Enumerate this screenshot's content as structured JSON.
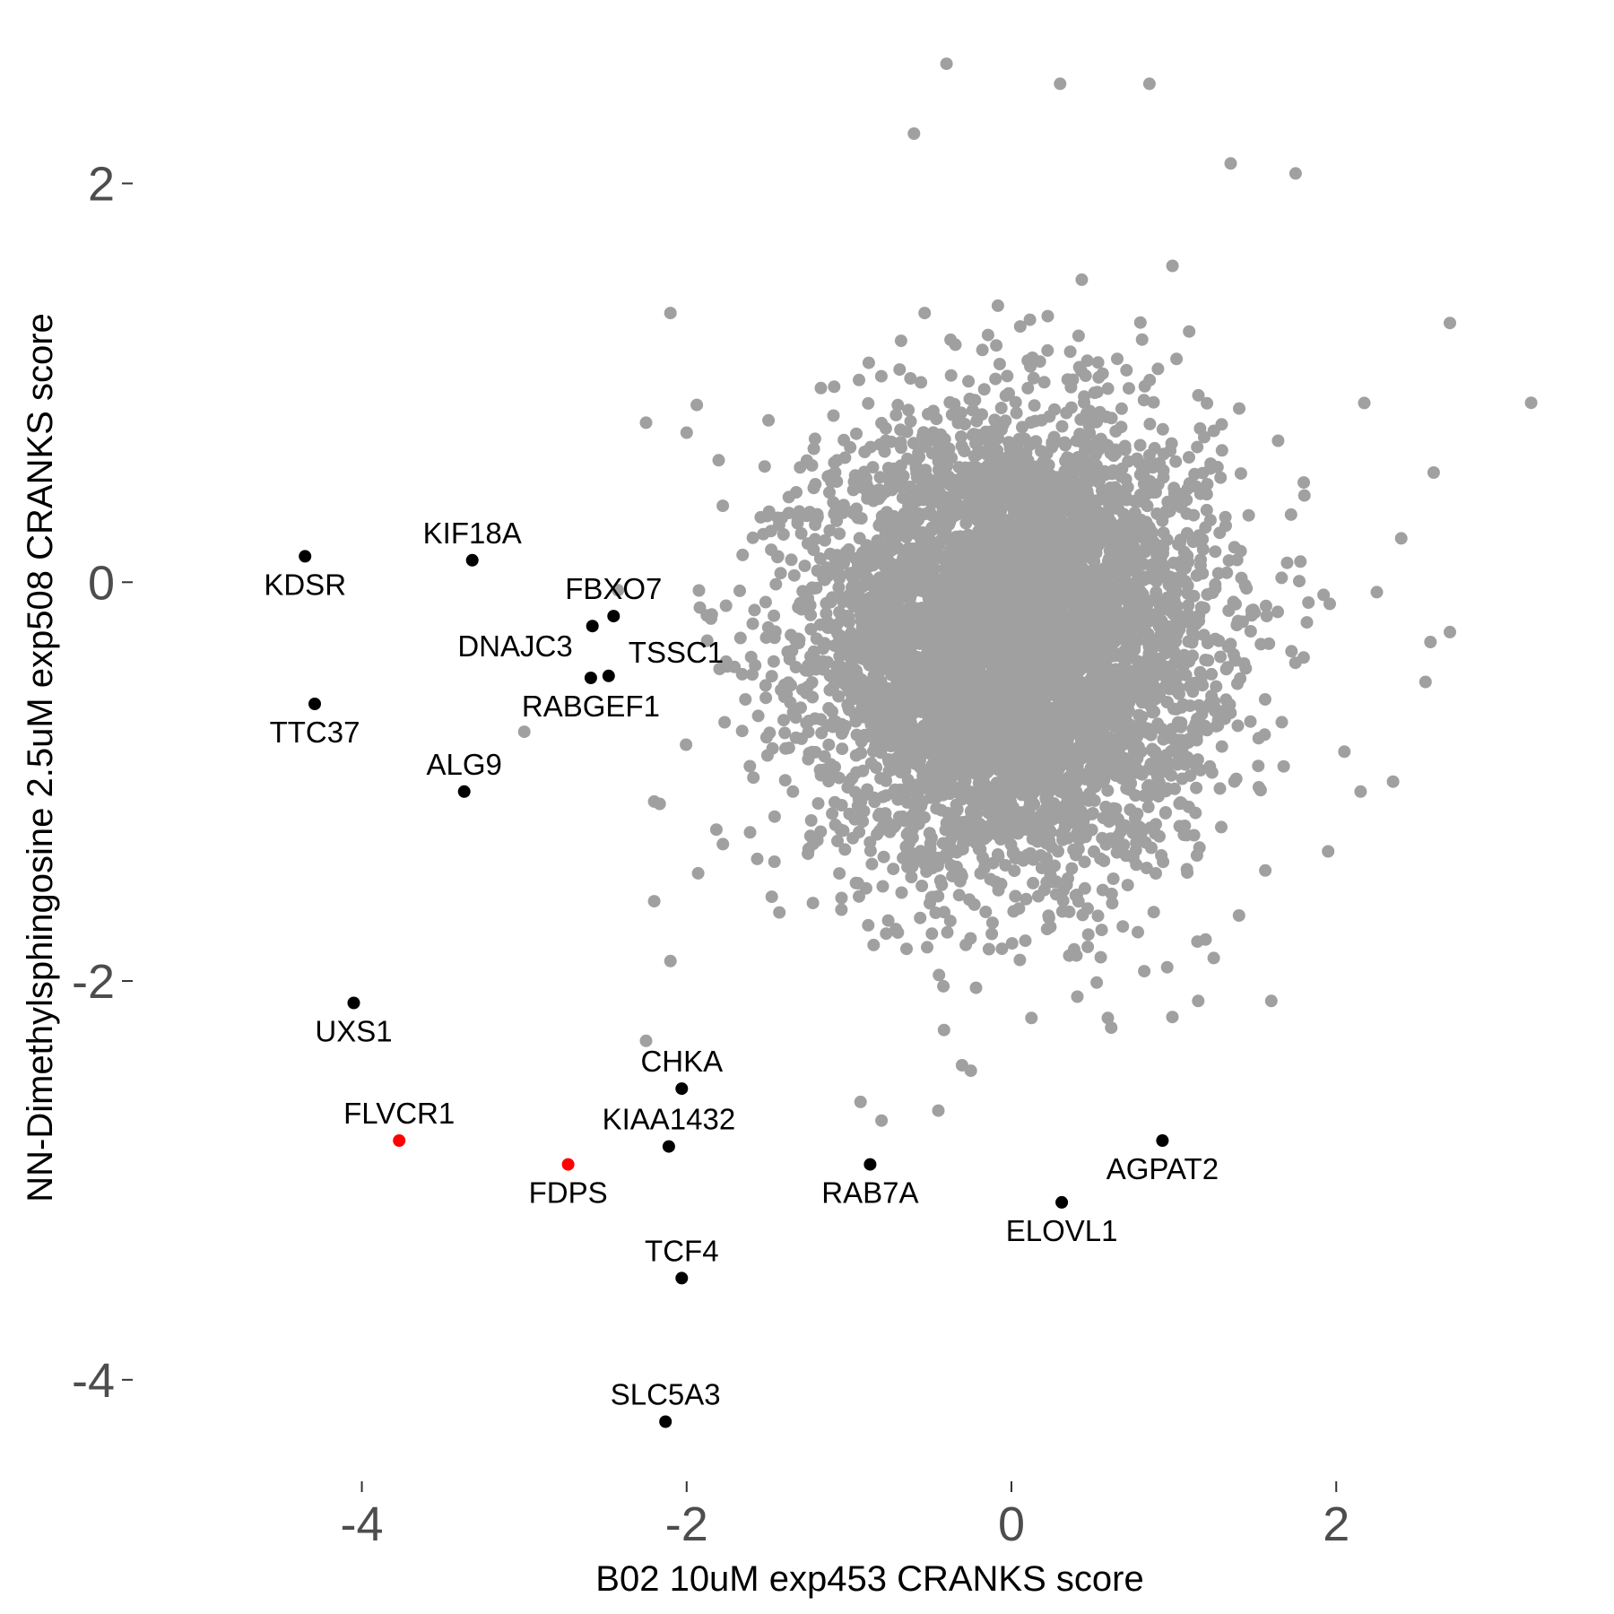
{
  "chart_data": {
    "type": "scatter",
    "title": "",
    "xlabel": "B02 10uM exp453 CRANKS score",
    "ylabel": "NN-Dimethylsphingosine 2.5uM exp508 CRANKS score",
    "xlim": [
      -5.4,
      3.6
    ],
    "ylim": [
      -4.5,
      2.65
    ],
    "x_ticks": [
      -4,
      -2,
      0,
      2
    ],
    "y_ticks": [
      -4,
      -2,
      0,
      2
    ],
    "grid": false,
    "legend": "none",
    "colors": {
      "background_points": "#a0a0a0",
      "highlight": "#000000",
      "highlight_red": "#ff0000",
      "tick_label": "#4d4d4d"
    },
    "background_cloud": {
      "description_count": 6000,
      "center": [
        0,
        -0.3
      ],
      "sd": [
        0.6,
        0.55
      ],
      "outliers": [
        [
          3.2,
          0.9
        ],
        [
          2.6,
          0.55
        ],
        [
          2.4,
          0.22
        ],
        [
          2.58,
          -0.3
        ],
        [
          2.7,
          1.3
        ],
        [
          1.75,
          2.05
        ],
        [
          1.35,
          2.1
        ],
        [
          0.85,
          2.5
        ],
        [
          0.3,
          2.5
        ],
        [
          -0.4,
          2.6
        ],
        [
          -0.6,
          2.25
        ],
        [
          -2.1,
          1.35
        ],
        [
          -2.0,
          0.75
        ],
        [
          -2.25,
          0.8
        ],
        [
          -3.0,
          -0.75
        ],
        [
          -2.2,
          -1.1
        ],
        [
          -2.2,
          -1.6
        ],
        [
          -2.1,
          -1.9
        ],
        [
          -2.25,
          -2.3
        ],
        [
          -0.8,
          -2.7
        ],
        [
          -0.45,
          -2.65
        ],
        [
          -0.25,
          -2.45
        ],
        [
          1.6,
          -2.1
        ],
        [
          1.15,
          -2.1
        ],
        [
          1.95,
          -1.35
        ],
        [
          2.05,
          -0.85
        ],
        [
          2.15,
          -1.05
        ],
        [
          2.35,
          -1.0
        ],
        [
          2.7,
          -0.25
        ],
        [
          2.25,
          -0.05
        ],
        [
          2.55,
          -0.5
        ],
        [
          1.8,
          0.5
        ]
      ]
    },
    "labeled_points": [
      {
        "label": "KDSR",
        "x": -4.35,
        "y": 0.13,
        "color": "#000000",
        "pos": "below"
      },
      {
        "label": "KIF18A",
        "x": -3.32,
        "y": 0.11,
        "color": "#000000",
        "pos": "above"
      },
      {
        "label": "FBXO7",
        "x": -2.45,
        "y": -0.17,
        "color": "#000000",
        "pos": "above"
      },
      {
        "label": "DNAJC3",
        "x": -2.58,
        "y": -0.22,
        "color": "#000000",
        "pos": "left"
      },
      {
        "label": "TSSC1",
        "x": -2.48,
        "y": -0.47,
        "color": "#000000",
        "pos": "right"
      },
      {
        "label": "RABGEF1",
        "x": -2.59,
        "y": -0.48,
        "color": "#000000",
        "pos": "below"
      },
      {
        "label": "TTC37",
        "x": -4.29,
        "y": -0.61,
        "color": "#000000",
        "pos": "below"
      },
      {
        "label": "ALG9",
        "x": -3.37,
        "y": -1.05,
        "color": "#000000",
        "pos": "above"
      },
      {
        "label": "UXS1",
        "x": -4.05,
        "y": -2.11,
        "color": "#000000",
        "pos": "below"
      },
      {
        "label": "CHKA",
        "x": -2.03,
        "y": -2.54,
        "color": "#000000",
        "pos": "above"
      },
      {
        "label": "FLVCR1",
        "x": -3.77,
        "y": -2.8,
        "color": "#ff0000",
        "pos": "above"
      },
      {
        "label": "KIAA1432",
        "x": -2.11,
        "y": -2.83,
        "color": "#000000",
        "pos": "above"
      },
      {
        "label": "FDPS",
        "x": -2.73,
        "y": -2.92,
        "color": "#ff0000",
        "pos": "below"
      },
      {
        "label": "RAB7A",
        "x": -0.87,
        "y": -2.92,
        "color": "#000000",
        "pos": "below"
      },
      {
        "label": "AGPAT2",
        "x": 0.93,
        "y": -2.8,
        "color": "#000000",
        "pos": "below"
      },
      {
        "label": "ELOVL1",
        "x": 0.31,
        "y": -3.11,
        "color": "#000000",
        "pos": "below"
      },
      {
        "label": "TCF4",
        "x": -2.03,
        "y": -3.49,
        "color": "#000000",
        "pos": "above"
      },
      {
        "label": "SLC5A3",
        "x": -2.13,
        "y": -4.21,
        "color": "#000000",
        "pos": "above"
      }
    ]
  }
}
